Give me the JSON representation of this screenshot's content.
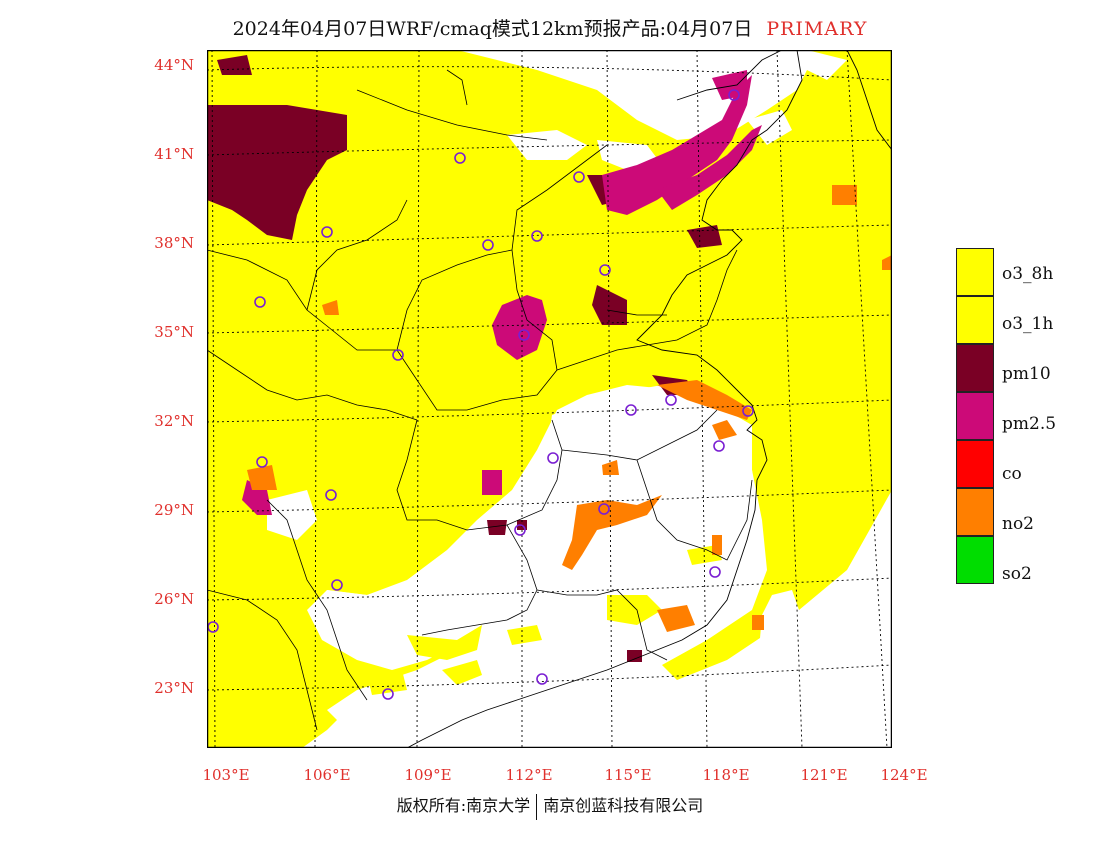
{
  "title": "2024年04月07日WRF/cmaq模式12km预报产品:04月07日",
  "title_tag": "PRIMARY",
  "lat_labels": [
    "44°N",
    "41°N",
    "38°N",
    "35°N",
    "32°N",
    "29°N",
    "26°N",
    "23°N"
  ],
  "lon_labels": [
    "103°E",
    "106°E",
    "109°E",
    "112°E",
    "115°E",
    "118°E",
    "121°E",
    "124°E"
  ],
  "legend": [
    {
      "label": "o3_8h",
      "color": "#ffff00"
    },
    {
      "label": "o3_1h",
      "color": "#ffff00"
    },
    {
      "label": "pm10",
      "color": "#7a0025"
    },
    {
      "label": "pm2.5",
      "color": "#cc0a78"
    },
    {
      "label": "co",
      "color": "#ff0000"
    },
    {
      "label": "no2",
      "color": "#ff7f00"
    },
    {
      "label": "so2",
      "color": "#00dd00"
    }
  ],
  "footer": {
    "left": "版权所有:南京大学",
    "right": "南京创蓝科技有限公司"
  },
  "colors": {
    "axis_label": "#e0302c",
    "o3": "#ffff00",
    "pm10": "#7a0025",
    "pm25": "#cc0a78",
    "no2": "#ff7f00"
  }
}
